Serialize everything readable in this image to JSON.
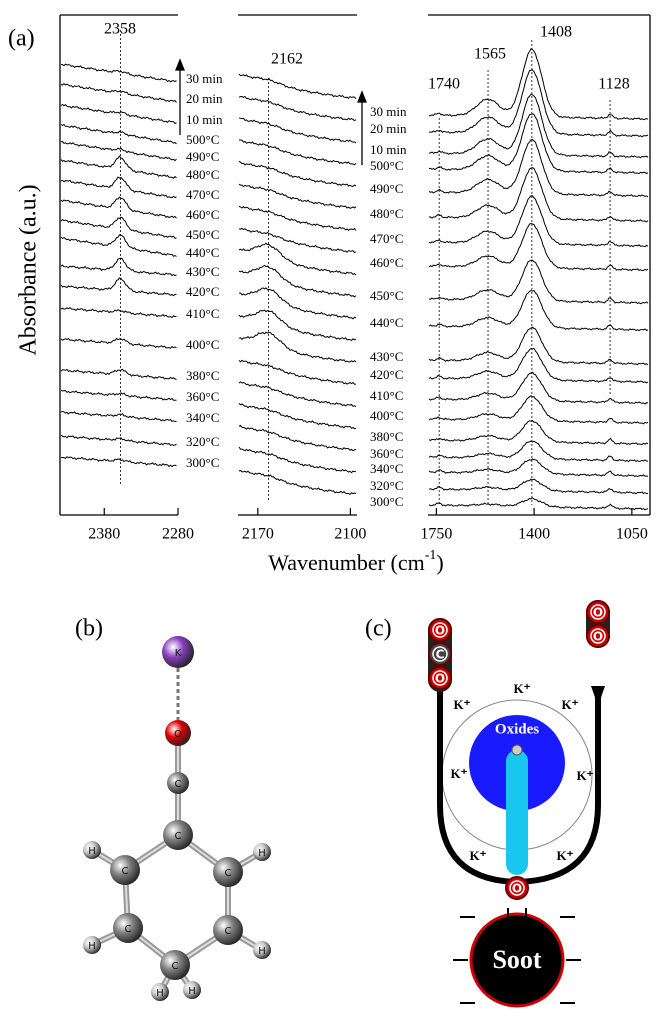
{
  "panel_a": {
    "label": "(a)",
    "y_axis_label": "Absorbance (a.u.)",
    "x_axis_label": {
      "text": "Wavenumber (cm",
      "superscript": "-1",
      "close": ")"
    },
    "trace_labels": [
      "30 min",
      "20 min",
      "10 min",
      "500°C",
      "490°C",
      "480°C",
      "470°C",
      "460°C",
      "450°C",
      "440°C",
      "430°C",
      "420°C",
      "410°C",
      "400°C",
      "380°C",
      "360°C",
      "340°C",
      "320°C",
      "300°C"
    ],
    "subplots": [
      {
        "xlim": [
          2440,
          2280
        ],
        "xticks": [
          2380,
          2280
        ],
        "peaks": [
          2358
        ]
      },
      {
        "xlim": [
          2185,
          2095
        ],
        "xticks": [
          2170,
          2100
        ],
        "peaks": [
          2162
        ]
      },
      {
        "xlim": [
          1780,
          985
        ],
        "xticks": [
          1750,
          1400,
          1050
        ],
        "peaks": [
          1740,
          1565,
          1408,
          1128
        ]
      }
    ]
  },
  "panel_b": {
    "label": "(b)",
    "atoms": [
      "K",
      "O",
      "C",
      "C",
      "C",
      "C",
      "C",
      "C",
      "C",
      "H",
      "H",
      "H",
      "H",
      "H",
      "H"
    ]
  },
  "panel_c": {
    "label": "(c)",
    "co2": [
      "O",
      "C",
      "O"
    ],
    "o2": [
      "O",
      "O"
    ],
    "oxides": "Oxides",
    "k_ions": [
      "K⁺",
      "K⁺",
      "K⁺",
      "K⁺",
      "K⁺",
      "K⁺",
      "K⁺"
    ],
    "surface_oxygen": "O",
    "soot": "Soot"
  }
}
